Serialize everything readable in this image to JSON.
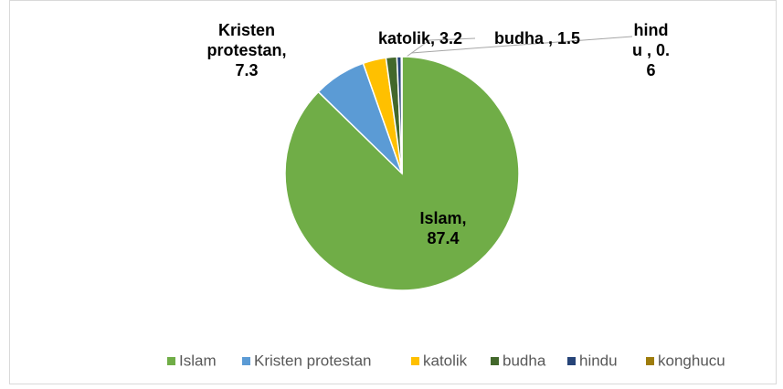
{
  "chart_data": {
    "type": "pie",
    "categories": [
      "Islam",
      "Kristen protestan",
      "katolik",
      "budha",
      "hindu",
      "konghucu"
    ],
    "values": [
      87.4,
      7.3,
      3.2,
      1.5,
      0.6,
      0.1
    ],
    "value_labels": [
      "Islam, 87.4",
      "Kristen protestan, 7.3",
      "katolik, 3.2",
      "budha , 1.5",
      "hindu , 0.6",
      null
    ],
    "colors": [
      "#70ad47",
      "#5b9bd5",
      "#ffc000",
      "#43682b",
      "#264478",
      "#9e7c0c"
    ],
    "legend": "bottom"
  }
}
